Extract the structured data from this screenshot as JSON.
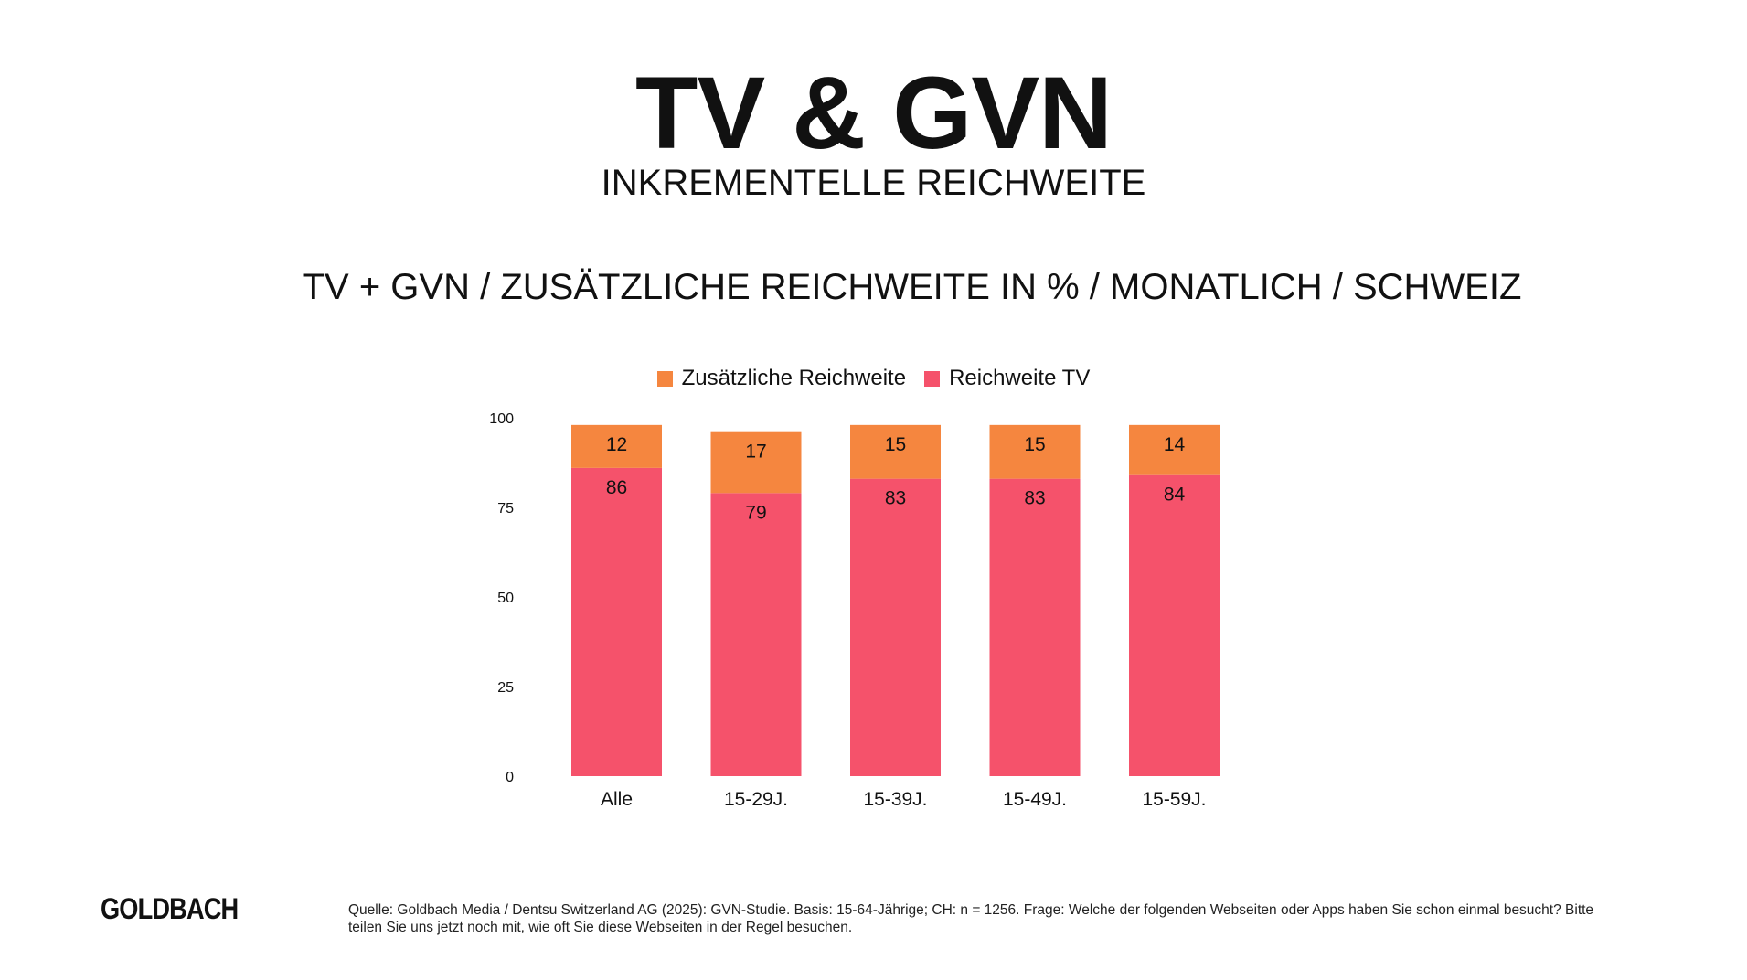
{
  "header": {
    "title": "TV & GVN",
    "subtitle": "INKREMENTELLE REICHWEITE"
  },
  "chart_data": {
    "type": "bar",
    "stacked": true,
    "title": "TV + GVN / ZUSÄTZLICHE REICHWEITE IN % / MONATLICH / SCHWEIZ",
    "categories": [
      "Alle",
      "15-29J.",
      "15-39J.",
      "15-49J.",
      "15-59J."
    ],
    "series": [
      {
        "name": "Reichweite TV",
        "color": "#F5526B",
        "values": [
          86,
          79,
          83,
          83,
          84
        ]
      },
      {
        "name": "Zusätzliche Reichweite",
        "color": "#F5863F",
        "values": [
          12,
          17,
          15,
          15,
          14
        ]
      }
    ],
    "legend_order": [
      "Zusätzliche Reichweite",
      "Reichweite TV"
    ],
    "legend_placement": "top",
    "yticks": [
      0,
      25,
      50,
      75,
      100
    ],
    "ylim": [
      0,
      100
    ],
    "xlabel": "",
    "ylabel": "",
    "grid": false
  },
  "footer": {
    "logo": "GOLDBACH",
    "source": "Quelle: Goldbach Media / Dentsu Switzerland AG (2025): GVN-Studie. Basis: 15-64-Jährige; CH: n = 1256. Frage: Welche der folgenden Webseiten oder Apps haben Sie schon einmal besucht? Bitte teilen Sie uns jetzt noch mit, wie oft Sie diese Webseiten in der Regel besuchen."
  }
}
